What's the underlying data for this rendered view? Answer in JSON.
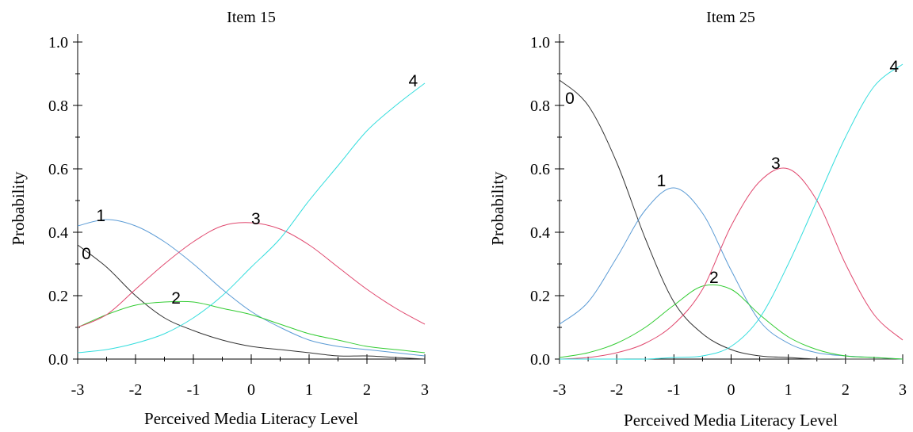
{
  "chart_data": [
    {
      "type": "line",
      "title": "Item 15",
      "xlabel": "Perceived Media Literacy Level",
      "ylabel": "Probability",
      "xlim": [
        -3,
        3
      ],
      "ylim": [
        0,
        1.0
      ],
      "xticks": [
        "-3",
        "-2",
        "-1",
        "0",
        "1",
        "2",
        "3"
      ],
      "yticks": [
        "0.0",
        "0.2",
        "0.4",
        "0.6",
        "0.8",
        "1.0"
      ],
      "grid": false,
      "x": [
        -3,
        -2.5,
        -2,
        -1.5,
        -1,
        -0.5,
        0,
        0.5,
        1,
        1.5,
        2,
        2.5,
        3
      ],
      "series": [
        {
          "name": "0",
          "color": "#333333",
          "label_x": -2.85,
          "label_y": 0.335,
          "values": [
            0.36,
            0.29,
            0.2,
            0.13,
            0.09,
            0.06,
            0.04,
            0.03,
            0.02,
            0.01,
            0.01,
            0.005,
            0.0
          ]
        },
        {
          "name": "1",
          "color": "#5b9bd5",
          "label_x": -2.6,
          "label_y": 0.455,
          "values": [
            0.42,
            0.44,
            0.42,
            0.37,
            0.3,
            0.22,
            0.15,
            0.1,
            0.06,
            0.04,
            0.03,
            0.02,
            0.01
          ]
        },
        {
          "name": "2",
          "color": "#33cc33",
          "label_x": -1.3,
          "label_y": 0.195,
          "values": [
            0.1,
            0.14,
            0.17,
            0.18,
            0.18,
            0.16,
            0.14,
            0.11,
            0.08,
            0.06,
            0.04,
            0.03,
            0.02
          ]
        },
        {
          "name": "3",
          "color": "#e0486e",
          "label_x": 0.08,
          "label_y": 0.445,
          "values": [
            0.1,
            0.14,
            0.22,
            0.3,
            0.37,
            0.42,
            0.43,
            0.41,
            0.36,
            0.29,
            0.22,
            0.16,
            0.11
          ]
        },
        {
          "name": "4",
          "color": "#33dddd",
          "label_x": 2.8,
          "label_y": 0.88,
          "values": [
            0.02,
            0.03,
            0.05,
            0.08,
            0.13,
            0.2,
            0.29,
            0.38,
            0.5,
            0.61,
            0.72,
            0.8,
            0.87
          ]
        }
      ]
    },
    {
      "type": "line",
      "title": "Item 25",
      "xlabel": "Perceived Media Literacy Level",
      "ylabel": "Probability",
      "xlim": [
        -3,
        3
      ],
      "ylim": [
        0,
        1.0
      ],
      "xticks": [
        "-3",
        "-2",
        "-1",
        "0",
        "1",
        "2",
        "3"
      ],
      "yticks": [
        "0.0",
        "0.2",
        "0.4",
        "0.6",
        "0.8",
        "1.0"
      ],
      "grid": false,
      "x": [
        -3,
        -2.5,
        -2,
        -1.5,
        -1,
        -0.5,
        0,
        0.5,
        1,
        1.5,
        2,
        2.5,
        3
      ],
      "series": [
        {
          "name": "0",
          "color": "#333333",
          "label_x": -2.82,
          "label_y": 0.825,
          "values": [
            0.88,
            0.8,
            0.62,
            0.38,
            0.18,
            0.08,
            0.03,
            0.01,
            0.005,
            0.0,
            0.0,
            0.0,
            0.0
          ]
        },
        {
          "name": "1",
          "color": "#5b9bd5",
          "label_x": -1.22,
          "label_y": 0.565,
          "values": [
            0.11,
            0.18,
            0.32,
            0.47,
            0.54,
            0.46,
            0.28,
            0.12,
            0.05,
            0.02,
            0.01,
            0.005,
            0.0
          ]
        },
        {
          "name": "2",
          "color": "#33cc33",
          "label_x": -0.3,
          "label_y": 0.26,
          "values": [
            0.005,
            0.02,
            0.05,
            0.1,
            0.17,
            0.23,
            0.22,
            0.14,
            0.07,
            0.03,
            0.01,
            0.005,
            0.0
          ]
        },
        {
          "name": "3",
          "color": "#e0486e",
          "label_x": 0.78,
          "label_y": 0.62,
          "values": [
            0.0,
            0.005,
            0.02,
            0.05,
            0.11,
            0.22,
            0.42,
            0.56,
            0.6,
            0.5,
            0.3,
            0.14,
            0.06
          ]
        },
        {
          "name": "4",
          "color": "#33dddd",
          "label_x": 2.85,
          "label_y": 0.925,
          "values": [
            0.0,
            0.0,
            0.0,
            0.0,
            0.005,
            0.01,
            0.04,
            0.13,
            0.3,
            0.5,
            0.7,
            0.86,
            0.93
          ]
        }
      ]
    }
  ]
}
